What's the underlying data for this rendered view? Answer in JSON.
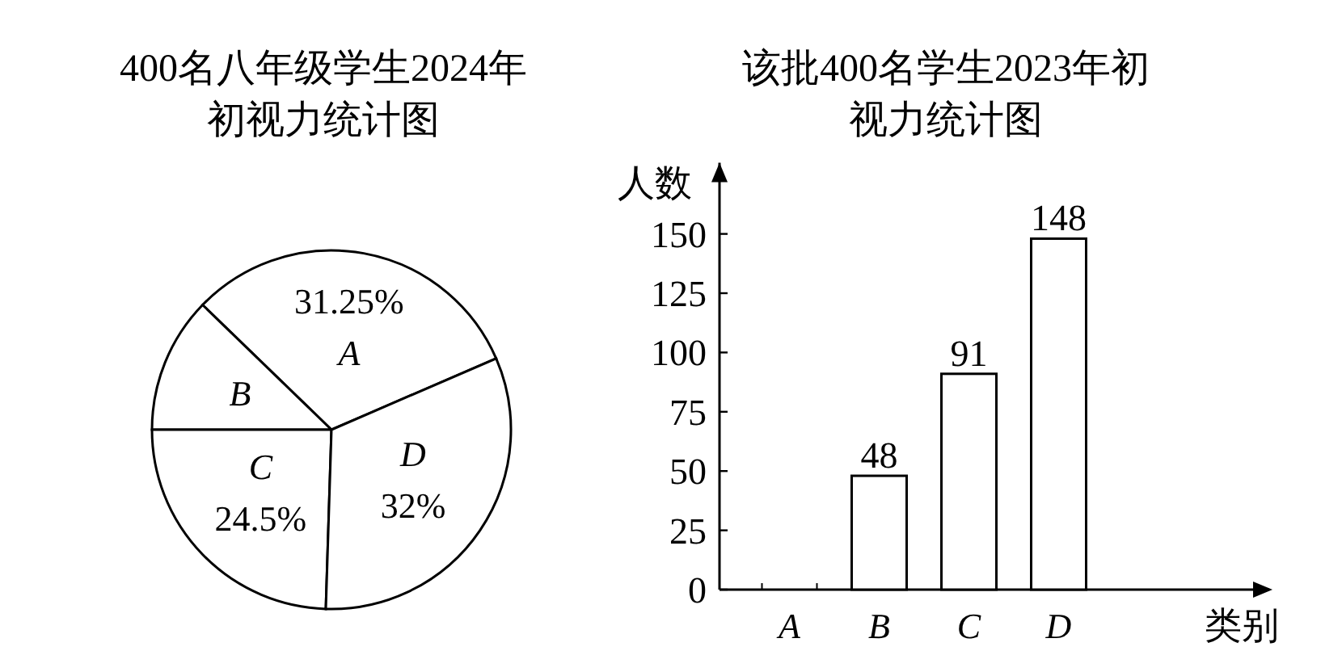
{
  "chart_data": [
    {
      "type": "pie",
      "title": "400名八年级学生2024年初视力统计图",
      "categories": [
        "A",
        "B",
        "C",
        "D"
      ],
      "values": [
        31.25,
        12.25,
        24.5,
        32
      ],
      "value_labels": [
        "31.25%",
        null,
        "24.5%",
        "32%"
      ],
      "colors": [
        "#ffffff",
        "#ffffff",
        "#ffffff",
        "#ffffff"
      ]
    },
    {
      "type": "bar",
      "title": "该批400名学生2023年初视力统计图",
      "categories": [
        "A",
        "B",
        "C",
        "D"
      ],
      "values": [
        null,
        48,
        91,
        148
      ],
      "color": "#ffffff",
      "data_labels": true,
      "ylim": [
        0,
        180
      ],
      "yticks": [
        0,
        25,
        50,
        75,
        100,
        125,
        150
      ],
      "xlabel": "类别",
      "ylabel": "人数"
    }
  ]
}
